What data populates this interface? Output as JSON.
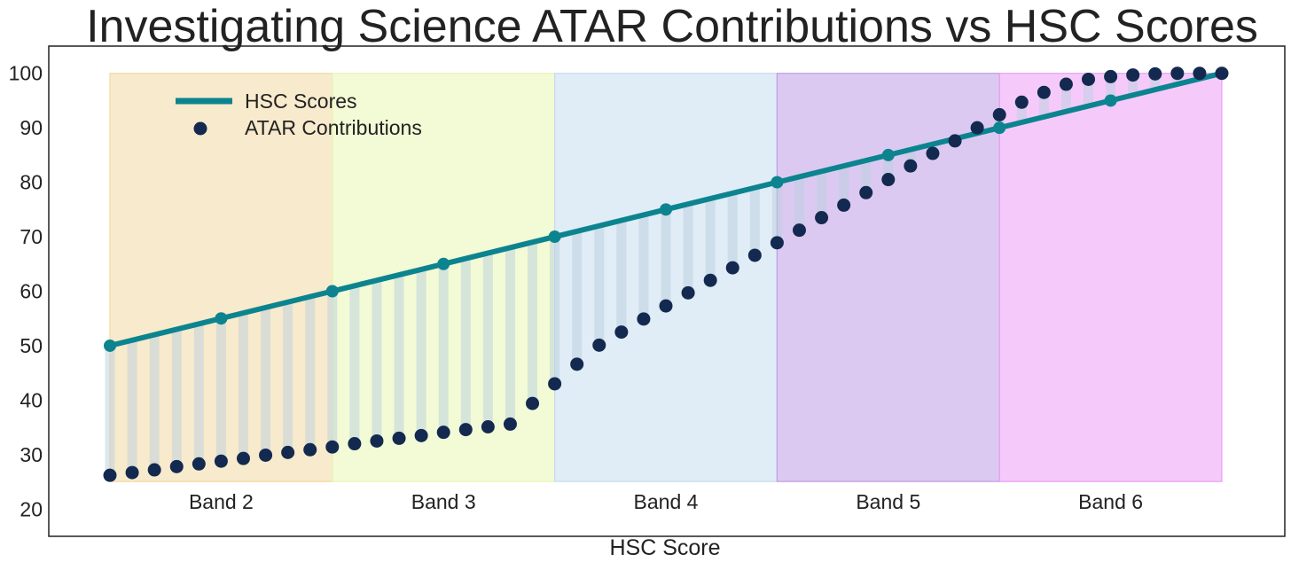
{
  "chart_data": {
    "type": "line",
    "title": "Investigating Science ATAR Contributions vs HSC Scores",
    "xlabel": "HSC Score",
    "ylabel": "",
    "ylim": [
      15,
      105
    ],
    "yticks": [
      20,
      30,
      40,
      50,
      60,
      70,
      80,
      90,
      100
    ],
    "grid": false,
    "legend_position": "top-left",
    "colors": {
      "hsc_line": "#0c848f",
      "atar_point": "#13294f",
      "fill": "#b9cfdd"
    },
    "bands": [
      {
        "label": "Band 2",
        "range": [
          50,
          60
        ],
        "color": "#f2d9a2"
      },
      {
        "label": "Band 3",
        "range": [
          60,
          70
        ],
        "color": "#e9f5b4"
      },
      {
        "label": "Band 4",
        "range": [
          70,
          80
        ],
        "color": "#c6dcee"
      },
      {
        "label": "Band 5",
        "range": [
          80,
          90
        ],
        "color": "#bf9ce6"
      },
      {
        "label": "Band 6",
        "range": [
          90,
          100
        ],
        "color": "#ec9ff5"
      }
    ],
    "series": [
      {
        "name": "HSC Scores",
        "style": "line-with-markers",
        "x": [
          50,
          55,
          60,
          65,
          70,
          75,
          80,
          85,
          90,
          95,
          100
        ],
        "values": [
          50,
          55,
          60,
          65,
          70,
          75,
          80,
          85,
          90,
          95,
          100
        ]
      },
      {
        "name": "ATAR Contributions",
        "style": "scatter",
        "x": [
          50,
          51,
          52,
          53,
          54,
          55,
          56,
          57,
          58,
          59,
          60,
          61,
          62,
          63,
          64,
          65,
          66,
          67,
          68,
          69,
          70,
          71,
          72,
          73,
          74,
          75,
          76,
          77,
          78,
          79,
          80,
          81,
          82,
          83,
          84,
          85,
          86,
          87,
          88,
          89,
          90,
          91,
          92,
          93,
          94,
          95,
          96,
          97,
          98,
          99,
          100
        ],
        "values": [
          26.2,
          26.7,
          27.2,
          27.8,
          28.3,
          28.8,
          29.3,
          29.9,
          30.4,
          30.9,
          31.4,
          32.0,
          32.5,
          33.0,
          33.5,
          34.1,
          34.6,
          35.1,
          35.6,
          39.4,
          43.0,
          46.6,
          50.1,
          52.5,
          54.9,
          57.3,
          59.7,
          62.0,
          64.3,
          66.6,
          68.9,
          71.2,
          73.5,
          75.8,
          78.1,
          80.5,
          83.0,
          85.3,
          87.6,
          90.0,
          92.4,
          94.7,
          96.5,
          98.0,
          98.9,
          99.4,
          99.7,
          99.9,
          100.0,
          100.0,
          100.0
        ]
      }
    ]
  }
}
